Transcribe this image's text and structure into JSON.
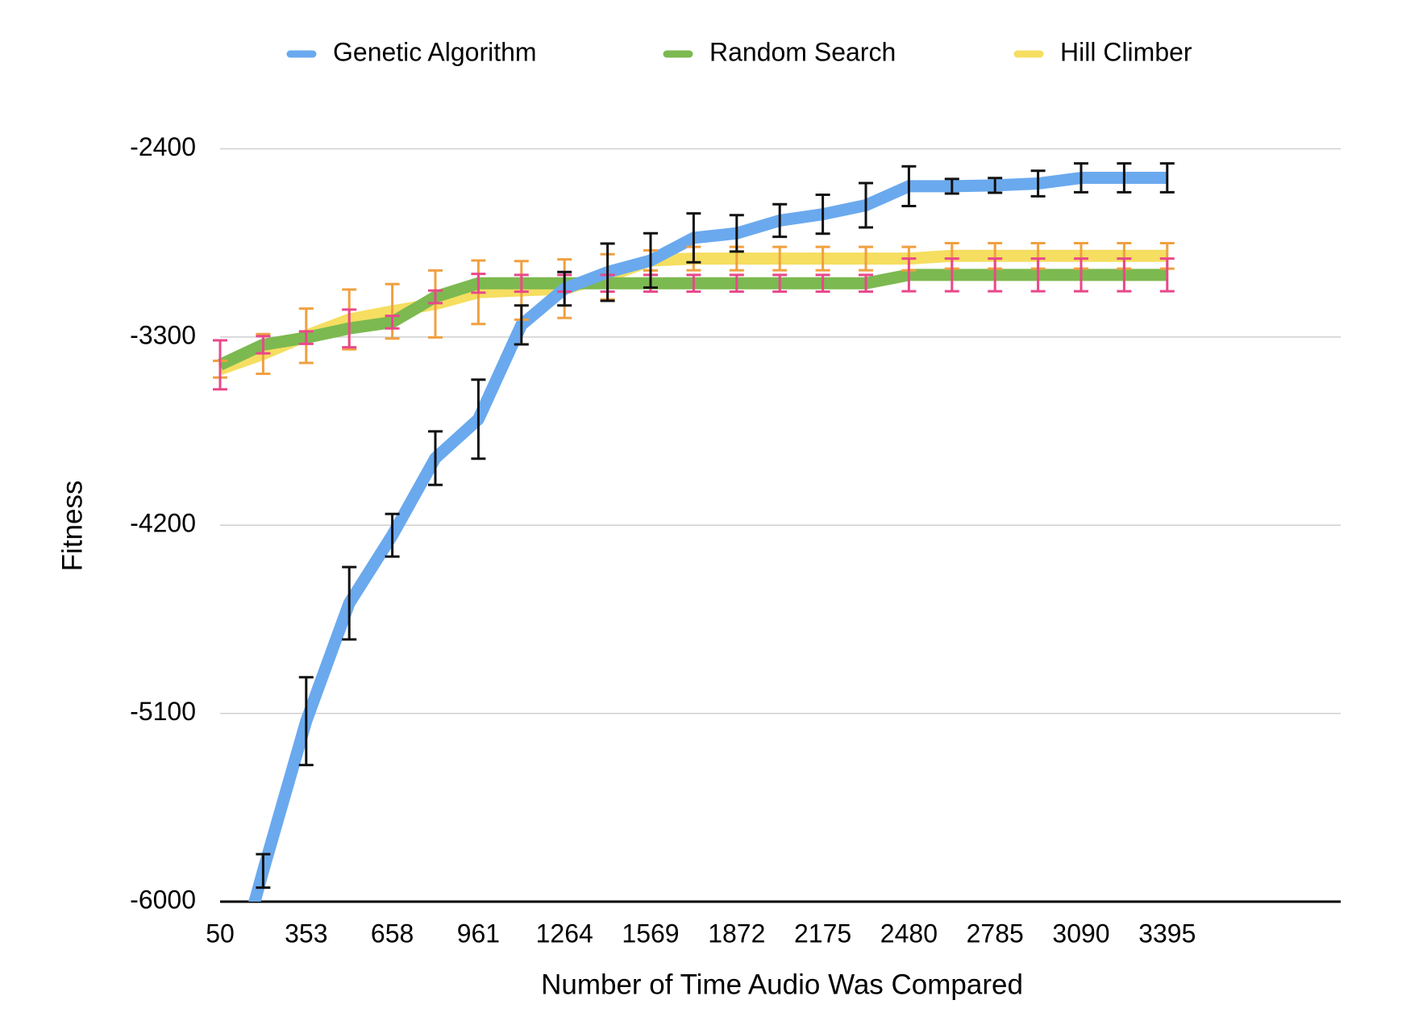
{
  "chart_data": {
    "type": "line",
    "xlabel": "Number of Time Audio Was Compared",
    "ylabel": "Fitness",
    "categories": [
      "50",
      null,
      "353",
      null,
      "658",
      null,
      "961",
      null,
      "1264",
      null,
      "1569",
      null,
      "1872",
      null,
      "2175",
      null,
      "2480",
      null,
      "2785",
      null,
      "3090",
      null,
      "3395"
    ],
    "ylim": [
      -6000,
      -2400
    ],
    "yticks": [
      -6000,
      -5100,
      -4200,
      -3300,
      -2400
    ],
    "grid": true,
    "legend": "top",
    "series": [
      {
        "name": "Genetic Algorithm",
        "color": "#6aa9ee",
        "error_color": "#111111",
        "values": [
          -6600,
          -5853,
          -5137,
          -4573,
          -4248,
          -3879,
          -3693,
          -3242,
          -3069,
          -2990,
          -2934,
          -2826,
          -2804,
          -2743,
          -2713,
          -2670,
          -2579,
          -2579,
          -2575,
          -2566,
          -2539,
          -2539,
          -2539
        ],
        "errors": [
          80,
          80,
          210,
          173,
          102,
          128,
          189,
          93,
          80,
          137,
          130,
          117,
          87,
          78,
          93,
          106,
          95,
          35,
          35,
          61,
          69,
          69,
          69
        ]
      },
      {
        "name": "Random Search",
        "color": "#7cb950",
        "error_color": "#e8488a",
        "values": [
          -3433,
          -3337,
          -3303,
          -3259,
          -3229,
          -3108,
          -3043,
          -3043,
          -3043,
          -3043,
          -3043,
          -3043,
          -3043,
          -3043,
          -3043,
          -3043,
          -3003,
          -3003,
          -3003,
          -3003,
          -3003,
          -3003,
          -3003
        ],
        "errors": [
          117,
          41,
          30,
          90,
          30,
          30,
          45,
          40,
          40,
          40,
          40,
          40,
          40,
          40,
          40,
          40,
          78,
          78,
          78,
          78,
          78,
          78,
          78
        ]
      },
      {
        "name": "Hill Climber",
        "color": "#f5de60",
        "error_color": "#f0a040",
        "values": [
          -3454,
          -3381,
          -3294,
          -3216,
          -3177,
          -3142,
          -3086,
          -3077,
          -3069,
          -3012,
          -2934,
          -2925,
          -2925,
          -2925,
          -2925,
          -2925,
          -2925,
          -2912,
          -2912,
          -2912,
          -2912,
          -2912,
          -2912
        ],
        "errors": [
          40,
          95,
          130,
          143,
          130,
          160,
          152,
          140,
          140,
          108,
          48,
          56,
          56,
          56,
          56,
          56,
          56,
          61,
          61,
          61,
          61,
          61,
          61
        ]
      }
    ]
  }
}
